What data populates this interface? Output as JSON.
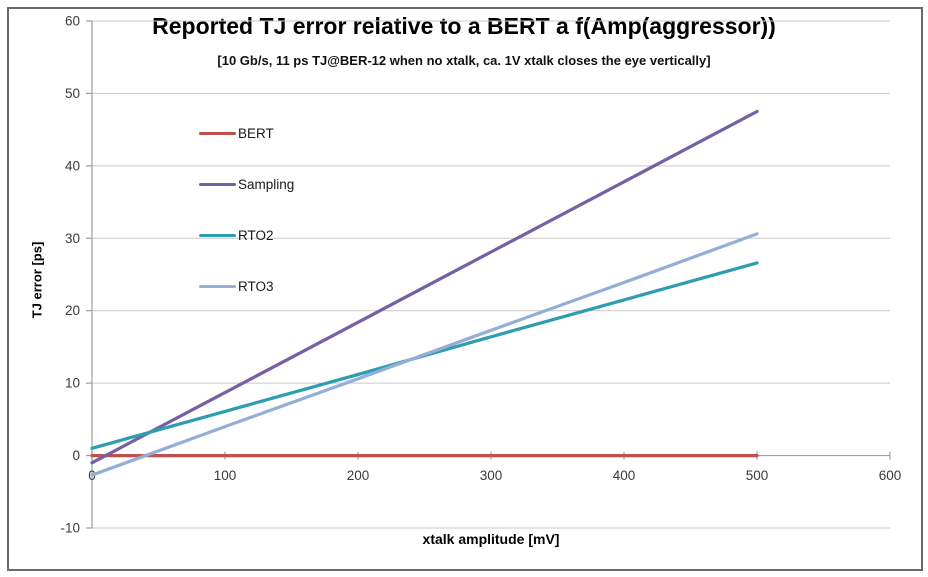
{
  "window": {
    "kind": "embedded chart image (Excel-style line chart)",
    "background": "#ffffff"
  },
  "colors": {
    "frame": "#6a6a6a",
    "grid": "#c9c9c9",
    "axis": "#9e9e9e",
    "tick_text": "#3a3a3a",
    "title_text": "#000000"
  },
  "chart_data": {
    "type": "line",
    "title": "Reported TJ error relative to a BERT a f(Amp(aggressor))",
    "subtitle": "[10 Gb/s, 11 ps TJ@BER-12 when no xtalk, ca. 1V xtalk closes the eye vertically]",
    "xlabel": "xtalk amplitude [mV]",
    "ylabel": "TJ error [ps]",
    "xlim": [
      0,
      600
    ],
    "ylim": [
      -10,
      60
    ],
    "xticks": [
      0,
      100,
      200,
      300,
      400,
      500,
      600
    ],
    "yticks": [
      -10,
      0,
      10,
      20,
      30,
      40,
      50,
      60
    ],
    "grid": "horizontal major gridlines on, vertical off",
    "legend_position": "inside upper-left, no border, vertical",
    "markers": "none (straight smooth lines)",
    "series": [
      {
        "name": "BERT",
        "color": "#C0504D",
        "x": [
          0,
          100,
          200,
          300,
          400,
          500
        ],
        "y": [
          0,
          0,
          0,
          0,
          0,
          0
        ]
      },
      {
        "name": "Sampling",
        "color": "#7560A5",
        "x": [
          0,
          100,
          200,
          300,
          400,
          500
        ],
        "y": [
          -1.0,
          8.7,
          18.4,
          28.1,
          37.8,
          47.5
        ]
      },
      {
        "name": "RTO2",
        "color": "#2F9DB0",
        "x": [
          0,
          100,
          200,
          300,
          400,
          500
        ],
        "y": [
          1.0,
          6.1,
          11.2,
          16.4,
          21.5,
          26.6
        ]
      },
      {
        "name": "RTO3",
        "color": "#95AED6",
        "x": [
          0,
          100,
          200,
          300,
          400,
          500
        ],
        "y": [
          -2.7,
          4.0,
          10.6,
          17.3,
          23.9,
          30.6
        ]
      }
    ]
  }
}
